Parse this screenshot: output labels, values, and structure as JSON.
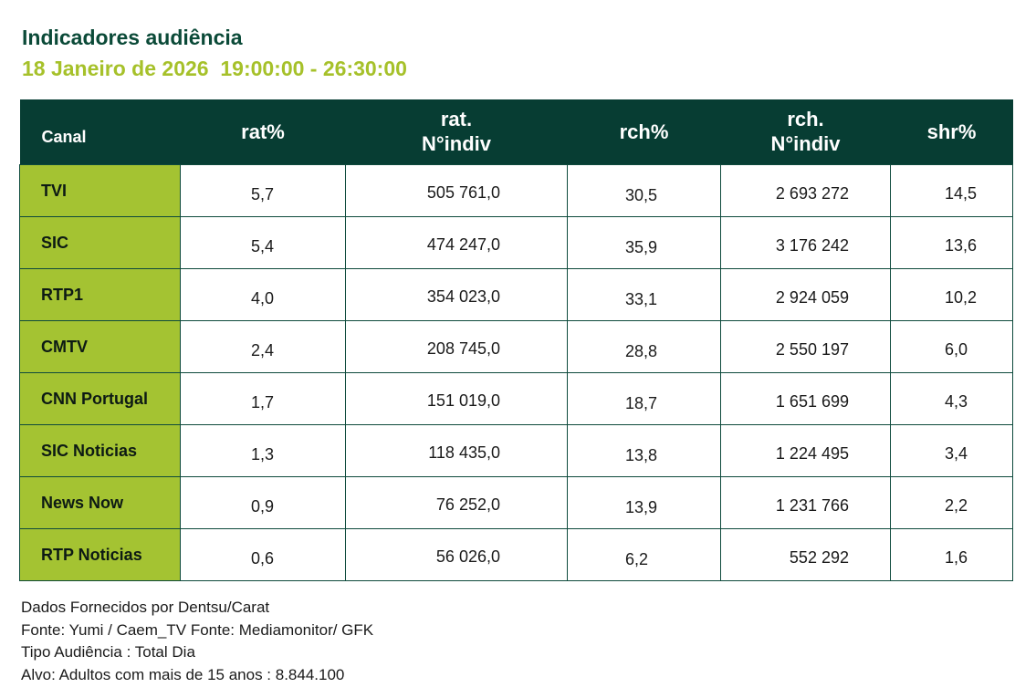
{
  "title": "Indicadores audiência",
  "subtitle": "18 Janeiro de 2026  19:00:00 - 26:30:00",
  "colors": {
    "title": "#0b4a38",
    "subtitle": "#a6c12a",
    "header_bg": "#073d33",
    "channel_bg": "#a4c332"
  },
  "table": {
    "headers": {
      "canal": "Canal",
      "rat_pct": "rat%",
      "rat_indiv_1": "rat.",
      "rat_indiv_2": "N°indiv",
      "rch_pct": "rch%",
      "rch_indiv_1": "rch.",
      "rch_indiv_2": "N°indiv",
      "shr_pct": "shr%"
    },
    "rows": [
      {
        "canal": "TVI",
        "rat_pct": "5,7",
        "rat_indiv": "505 761,0",
        "rch_pct": "30,5",
        "rch_indiv": "2 693 272",
        "shr_pct": "14,5"
      },
      {
        "canal": "SIC",
        "rat_pct": "5,4",
        "rat_indiv": "474 247,0",
        "rch_pct": "35,9",
        "rch_indiv": "3 176 242",
        "shr_pct": "13,6"
      },
      {
        "canal": "RTP1",
        "rat_pct": "4,0",
        "rat_indiv": "354 023,0",
        "rch_pct": "33,1",
        "rch_indiv": "2 924 059",
        "shr_pct": "10,2"
      },
      {
        "canal": "CMTV",
        "rat_pct": "2,4",
        "rat_indiv": "208 745,0",
        "rch_pct": "28,8",
        "rch_indiv": "2 550 197",
        "shr_pct": "6,0"
      },
      {
        "canal": "CNN Portugal",
        "rat_pct": "1,7",
        "rat_indiv": "151 019,0",
        "rch_pct": "18,7",
        "rch_indiv": "1 651 699",
        "shr_pct": "4,3"
      },
      {
        "canal": "SIC Noticias",
        "rat_pct": "1,3",
        "rat_indiv": "118 435,0",
        "rch_pct": "13,8",
        "rch_indiv": "1 224 495",
        "shr_pct": "3,4"
      },
      {
        "canal": "News Now",
        "rat_pct": "0,9",
        "rat_indiv": "76 252,0",
        "rch_pct": "13,9",
        "rch_indiv": "1 231 766",
        "shr_pct": "2,2"
      },
      {
        "canal": "RTP Noticias",
        "rat_pct": "0,6",
        "rat_indiv": "56 026,0",
        "rch_pct": "6,2",
        "rch_indiv": "552 292",
        "shr_pct": "1,6"
      }
    ]
  },
  "footer": {
    "line1": "Dados Fornecidos por Dentsu/Carat",
    "line2": "Fonte: Yumi / Caem_TV Fonte: Mediamonitor/ GFK",
    "line3": "Tipo Audiência : Total Dia",
    "line4": "Alvo: Adultos com mais de 15 anos : 8.844.100"
  }
}
